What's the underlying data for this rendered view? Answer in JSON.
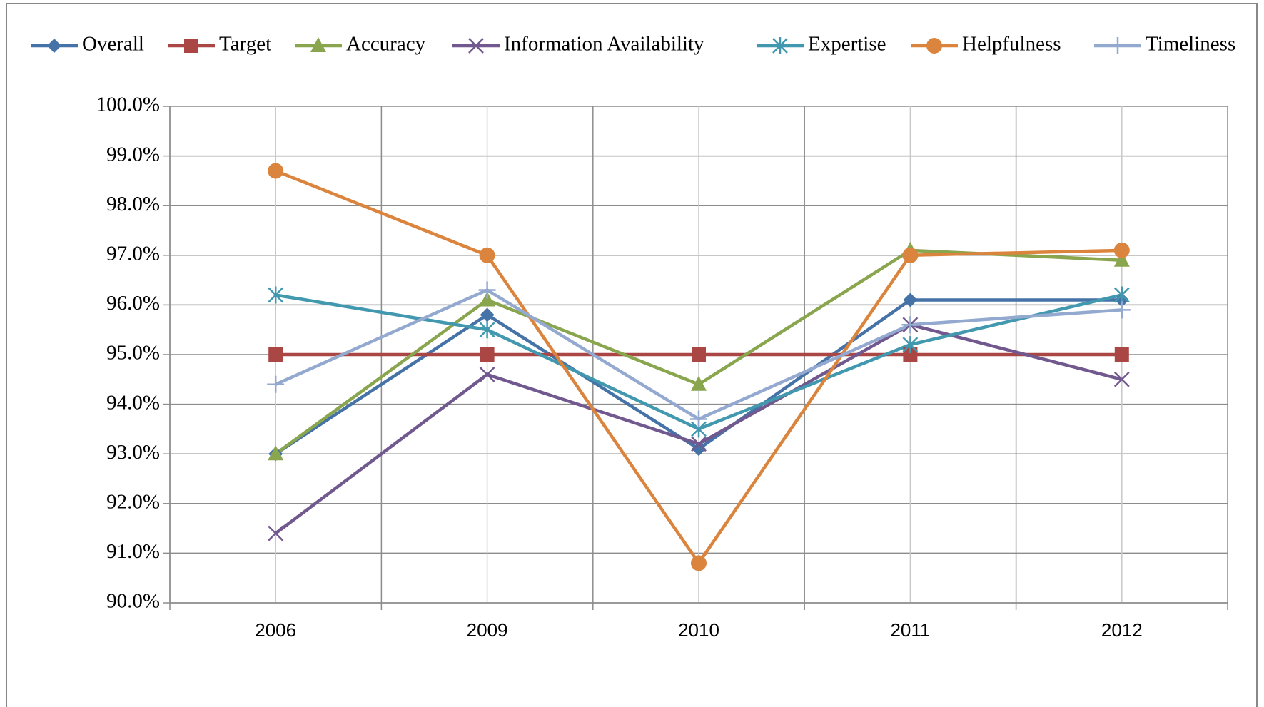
{
  "chart_data": {
    "type": "line",
    "categories": [
      "2006",
      "2009",
      "2010",
      "2011",
      "2012"
    ],
    "ylim": [
      90,
      100
    ],
    "yticks": [
      {
        "value": 90,
        "label": "90.0%"
      },
      {
        "value": 91,
        "label": "91.0%"
      },
      {
        "value": 92,
        "label": "92.0%"
      },
      {
        "value": 93,
        "label": "93.0%"
      },
      {
        "value": 94,
        "label": "94.0%"
      },
      {
        "value": 95,
        "label": "95.0%"
      },
      {
        "value": 96,
        "label": "96.0%"
      },
      {
        "value": 97,
        "label": "97.0%"
      },
      {
        "value": 98,
        "label": "98.0%"
      },
      {
        "value": 99,
        "label": "99.0%"
      },
      {
        "value": 100,
        "label": "100.0%"
      }
    ],
    "grid": true,
    "legend": "top",
    "series": [
      {
        "name": "Overall",
        "color": "#4572a7",
        "marker": "diamond",
        "values": [
          93.0,
          95.8,
          93.1,
          96.1,
          96.1
        ]
      },
      {
        "name": "Target",
        "color": "#aa4643",
        "marker": "square",
        "values": [
          95,
          95,
          95,
          95,
          95
        ]
      },
      {
        "name": "Accuracy",
        "color": "#89a54e",
        "marker": "triangle",
        "values": [
          93.0,
          96.1,
          94.4,
          97.1,
          96.9
        ]
      },
      {
        "name": "Information Availability",
        "color": "#71588f",
        "marker": "x",
        "values": [
          91.4,
          94.6,
          93.2,
          95.6,
          94.5
        ]
      },
      {
        "name": "Expertise",
        "color": "#4198af",
        "marker": "asterisk",
        "values": [
          96.2,
          95.5,
          93.5,
          95.2,
          96.2
        ]
      },
      {
        "name": "Helpfulness",
        "color": "#db843d",
        "marker": "circle",
        "values": [
          98.7,
          97.0,
          90.8,
          97.0,
          97.1
        ]
      },
      {
        "name": "Timeliness",
        "color": "#93a9cf",
        "marker": "plus",
        "values": [
          94.4,
          96.3,
          93.7,
          95.6,
          95.9
        ]
      }
    ]
  }
}
